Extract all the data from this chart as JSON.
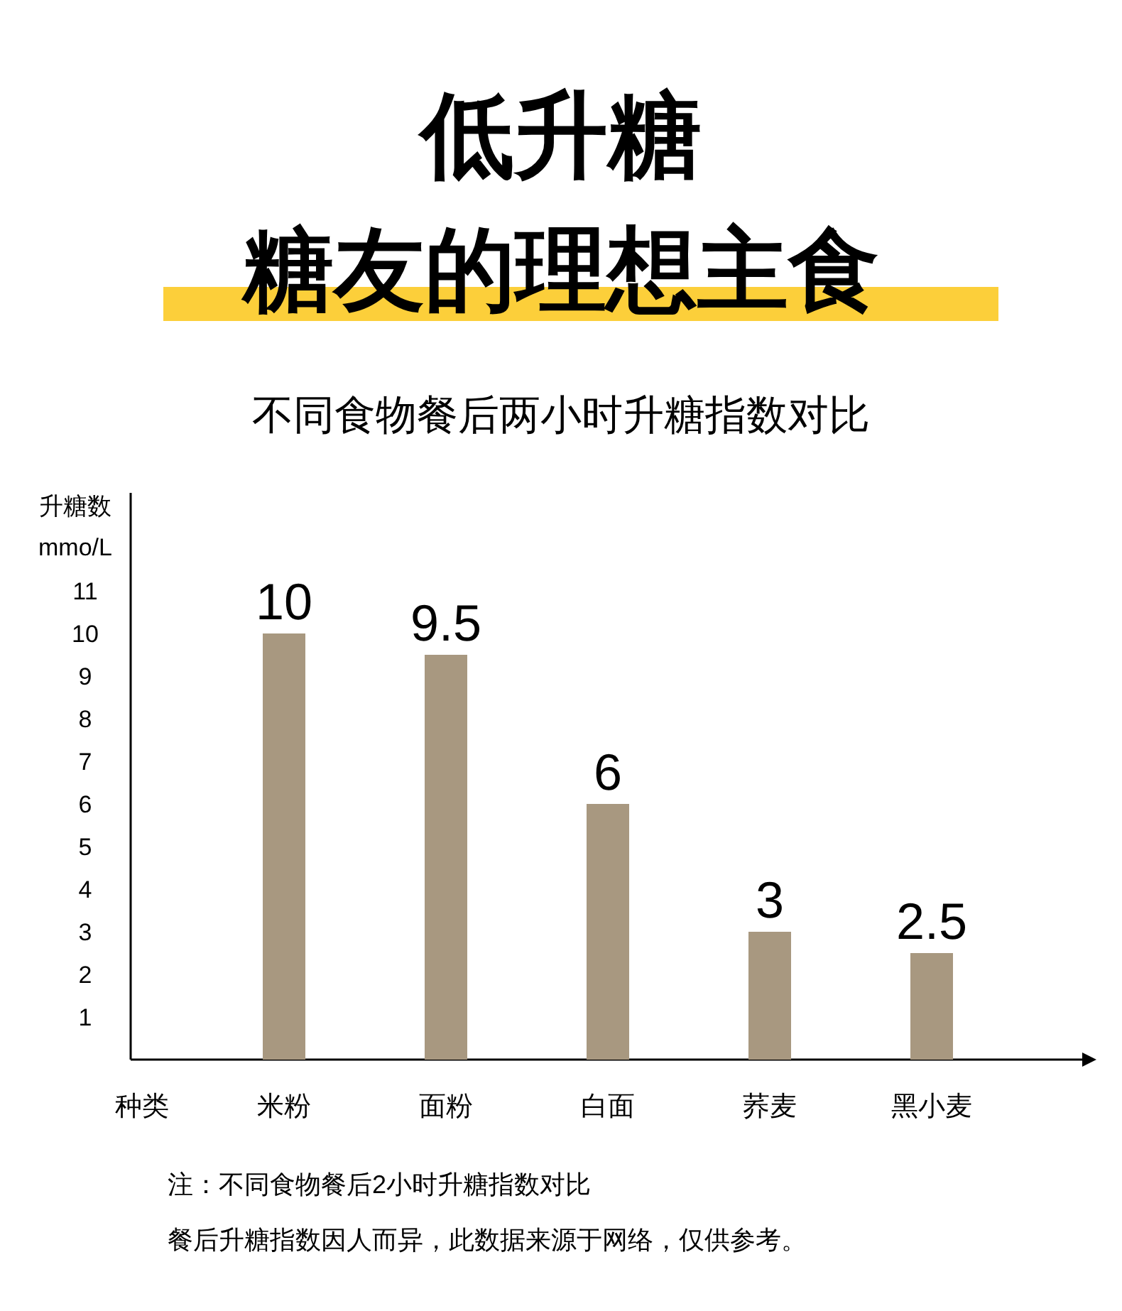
{
  "chart_data": {
    "type": "bar",
    "title": "低升糖",
    "subtitle": "糖友的理想主食",
    "xlabel": "种类",
    "ylabel": "升糖数 mmo/L",
    "categories": [
      "米粉",
      "面粉",
      "白面",
      "荞麦",
      "黑小麦"
    ],
    "values": [
      10,
      9.5,
      6,
      3,
      2.5
    ],
    "color": "#a89880",
    "data_labels": true,
    "ylim": [
      0,
      13.3
    ],
    "yticks": [
      1,
      2,
      3,
      4,
      5,
      6,
      7,
      8,
      9,
      10,
      11
    ],
    "annotations": [
      "不同食物餐后两小时升糖指数对比",
      "注：不同食物餐后2小时升糖指数对比",
      "餐后升糖指数因人而异，此数据来源于网络，仅供参考。"
    ]
  }
}
